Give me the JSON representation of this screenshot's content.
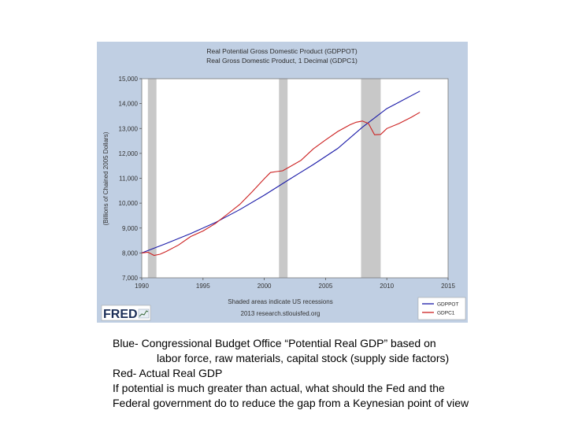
{
  "chart_data": {
    "type": "line",
    "title": "Real Potential Gross Domestic Product (GDPPOT)",
    "subtitle": "Real Gross Domestic Product, 1 Decimal (GDPC1)",
    "xlabel": "",
    "ylabel": "(Billions of Chained 2005 Dollars)",
    "xlim": [
      1990,
      2015
    ],
    "ylim": [
      7000,
      15000
    ],
    "x_ticks": [
      "1990",
      "1995",
      "2000",
      "2005",
      "2010",
      "2015"
    ],
    "y_ticks": [
      "7,000",
      "8,000",
      "9,000",
      "10,000",
      "11,000",
      "12,000",
      "13,000",
      "14,000",
      "15,000"
    ],
    "grid": false,
    "legend_position": "bottom-right",
    "recessions": [
      [
        1990.5,
        1991.2
      ],
      [
        2001.2,
        2001.9
      ],
      [
        2007.9,
        2009.5
      ]
    ],
    "recession_note": "Shaded areas indicate US recessions",
    "source_note": "2013 research.stlouisfed.org",
    "series": [
      {
        "name": "GDPPOT",
        "color": "#1a1aa8",
        "x": [
          1990,
          1992,
          1994,
          1996,
          1998,
          2000,
          2002,
          2004,
          2006,
          2008,
          2010,
          2012.7
        ],
        "y": [
          8000,
          8380,
          8780,
          9220,
          9740,
          10320,
          10940,
          11550,
          12200,
          13050,
          13800,
          14500
        ]
      },
      {
        "name": "GDPC1",
        "color": "#cc2020",
        "x": [
          1990,
          1990.5,
          1991,
          1991.5,
          1992,
          1993,
          1994,
          1995,
          1996,
          1997,
          1998,
          1999,
          2000,
          2000.5,
          2001,
          2001.5,
          2002,
          2003,
          2004,
          2005,
          2006,
          2007,
          2007.5,
          2008,
          2008.5,
          2009,
          2009.5,
          2010,
          2011,
          2012,
          2012.7
        ],
        "y": [
          8000,
          8030,
          7900,
          7950,
          8060,
          8320,
          8660,
          8880,
          9180,
          9560,
          9950,
          10450,
          10980,
          11230,
          11270,
          11300,
          11440,
          11720,
          12180,
          12540,
          12880,
          13150,
          13250,
          13300,
          13200,
          12750,
          12760,
          13000,
          13200,
          13450,
          13650
        ]
      }
    ]
  },
  "branding": {
    "logo_text": "FRED"
  },
  "caption": {
    "lines": [
      "Blue- Congressional Budget Office “Potential Real GDP” based on",
      "labor force, raw materials, capital stock (supply side factors)",
      "Red- Actual Real GDP",
      "If potential is much greater than actual, what should the Fed and the",
      "Federal government do to reduce the gap from a Keynesian point of view"
    ]
  }
}
